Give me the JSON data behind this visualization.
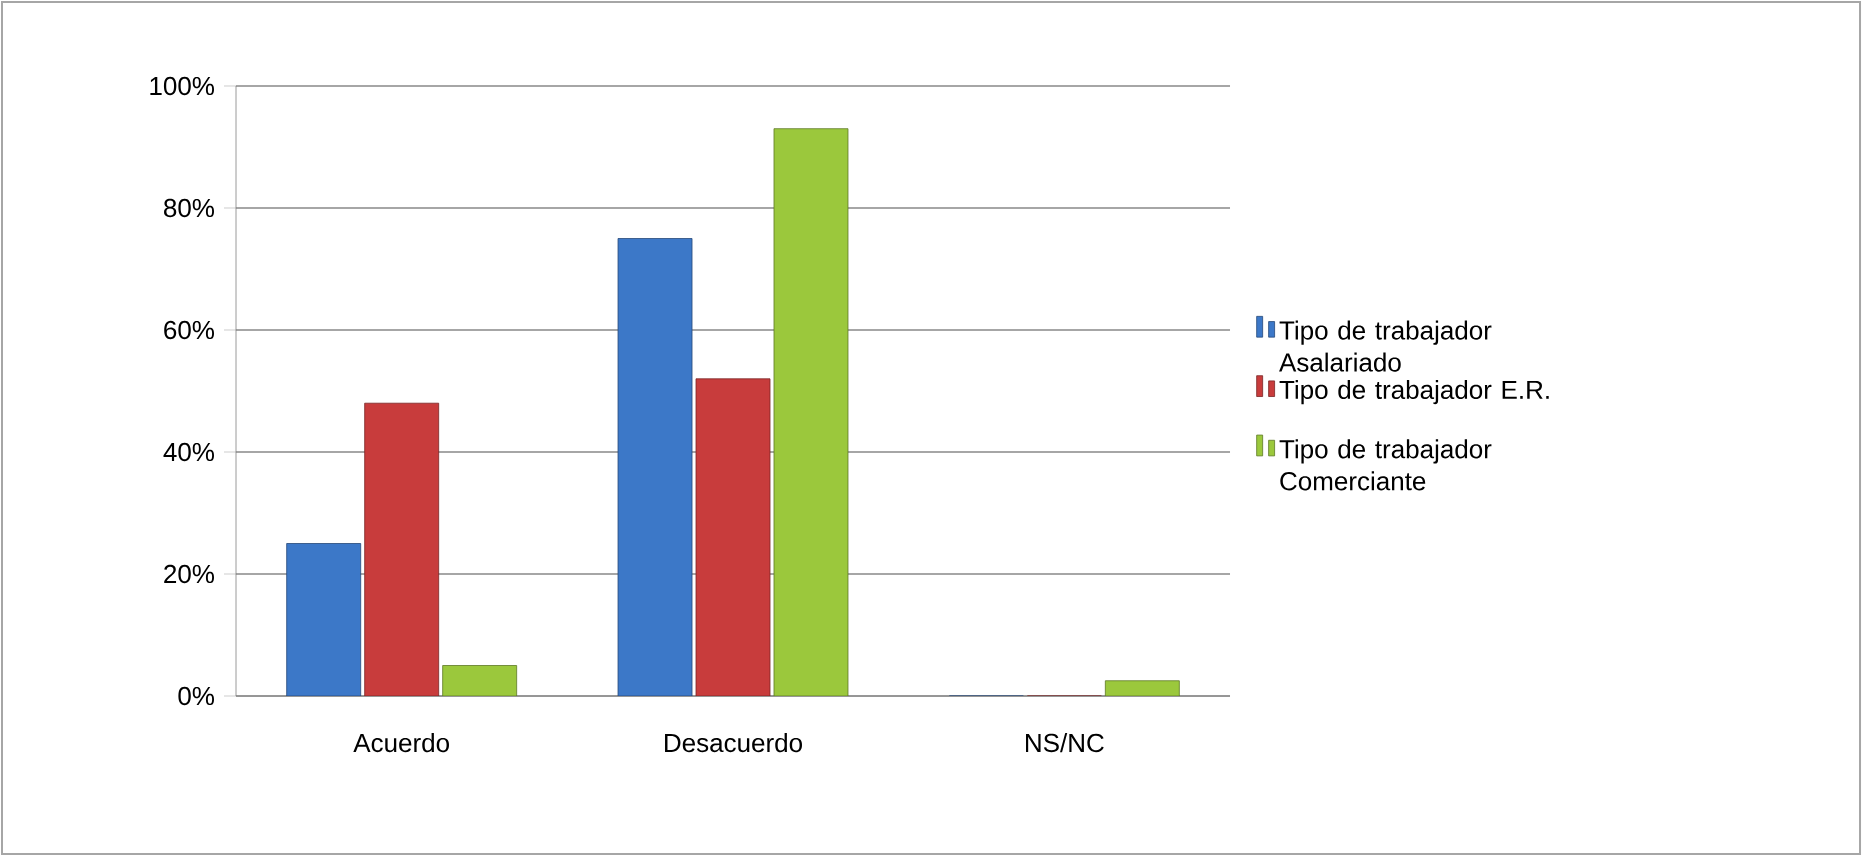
{
  "chart_data": {
    "type": "bar",
    "categories": [
      "Acuerdo",
      "Desacuerdo",
      "NS/NC"
    ],
    "series": [
      {
        "name": "Tipo de trabajador Asalariado",
        "color": "#3c78c8",
        "values": [
          25,
          75,
          0
        ]
      },
      {
        "name": "Tipo de trabajador E.R.",
        "color": "#c83c3c",
        "values": [
          48,
          52,
          0
        ]
      },
      {
        "name": "Tipo de trabajador Comerciante",
        "color": "#9bc83c",
        "values": [
          5,
          93,
          2.5
        ]
      }
    ],
    "ylim": [
      0,
      100
    ],
    "yticks": [
      {
        "value": 0,
        "label": "0%"
      },
      {
        "value": 20,
        "label": "20%"
      },
      {
        "value": 40,
        "label": "40%"
      },
      {
        "value": 60,
        "label": "60%"
      },
      {
        "value": 80,
        "label": "80%"
      },
      {
        "value": 100,
        "label": "100%"
      }
    ],
    "grid": "y",
    "legend": "right"
  }
}
